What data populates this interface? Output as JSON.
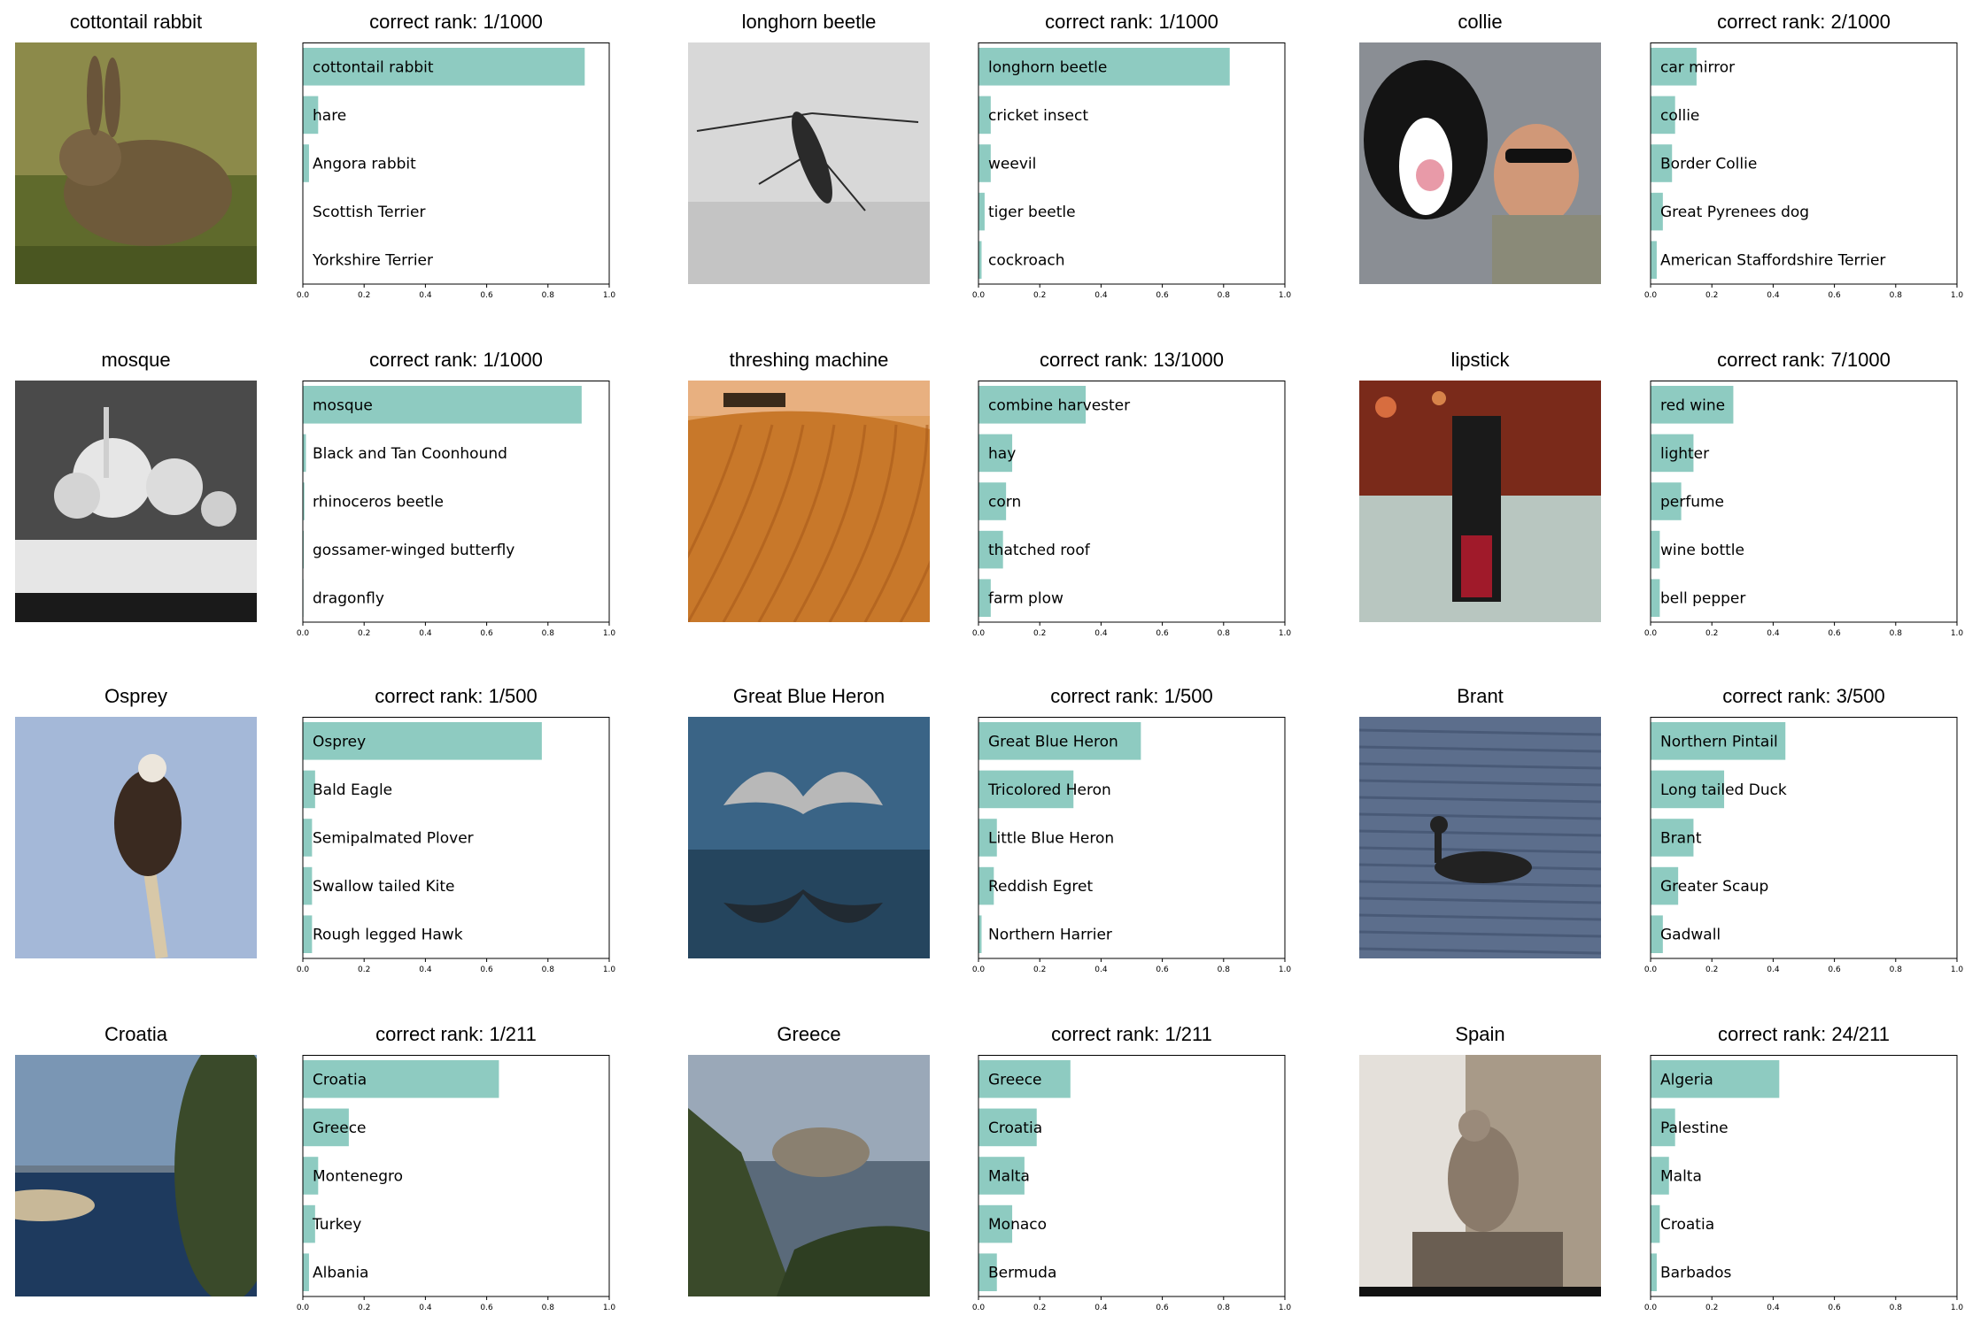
{
  "bar_color": "#8ecbc1",
  "chart_data": [
    {
      "type": "bar",
      "orientation": "horizontal",
      "image_title": "cottontail rabbit",
      "title": "correct rank: 1/1000",
      "categories": [
        "cottontail rabbit",
        "hare",
        "Angora rabbit",
        "Scottish Terrier",
        "Yorkshire Terrier"
      ],
      "values": [
        0.92,
        0.05,
        0.02,
        0.0,
        0.0
      ],
      "xlim": [
        0,
        1
      ],
      "xticks": [
        "0.0",
        "0.2",
        "0.4",
        "0.6",
        "0.8",
        "1.0"
      ],
      "image": {
        "icon": "rabbit-photo",
        "colors": [
          "#5f6a2c",
          "#8c8a4a",
          "#3c4a1a"
        ]
      }
    },
    {
      "type": "bar",
      "orientation": "horizontal",
      "image_title": "longhorn beetle",
      "title": "correct rank: 1/1000",
      "categories": [
        "longhorn beetle",
        "cricket insect",
        "weevil",
        "tiger beetle",
        "cockroach"
      ],
      "values": [
        0.82,
        0.04,
        0.04,
        0.02,
        0.01
      ],
      "xlim": [
        0,
        1
      ],
      "xticks": [
        "0.0",
        "0.2",
        "0.4",
        "0.6",
        "0.8",
        "1.0"
      ],
      "image": {
        "icon": "beetle-photo",
        "colors": [
          "#d8d8d8",
          "#c4c4c4",
          "#2a2a2a"
        ]
      }
    },
    {
      "type": "bar",
      "orientation": "horizontal",
      "image_title": "collie",
      "title": "correct rank: 2/1000",
      "categories": [
        "car mirror",
        "collie",
        "Border Collie",
        "Great Pyrenees dog",
        "American Staffordshire Terrier"
      ],
      "values": [
        0.15,
        0.08,
        0.07,
        0.04,
        0.02
      ],
      "xlim": [
        0,
        1
      ],
      "xticks": [
        "0.0",
        "0.2",
        "0.4",
        "0.6",
        "0.8",
        "1.0"
      ],
      "image": {
        "icon": "dog-and-man-photo",
        "colors": [
          "#8a8e94",
          "#ffffff",
          "#141414"
        ]
      }
    },
    {
      "type": "bar",
      "orientation": "horizontal",
      "image_title": "mosque",
      "title": "correct rank: 1/1000",
      "categories": [
        "mosque",
        "Black and Tan Coonhound",
        "rhinoceros beetle",
        "gossamer-winged butterfly",
        "dragonfly"
      ],
      "values": [
        0.91,
        0.01,
        0.005,
        0.003,
        0.002
      ],
      "xlim": [
        0,
        1
      ],
      "xticks": [
        "0.0",
        "0.2",
        "0.4",
        "0.6",
        "0.8",
        "1.0"
      ],
      "image": {
        "icon": "mosque-photo",
        "colors": [
          "#4a4a4a",
          "#e6e6e6",
          "#1a1a1a"
        ]
      }
    },
    {
      "type": "bar",
      "orientation": "horizontal",
      "image_title": "threshing machine",
      "title": "correct rank: 13/1000",
      "categories": [
        "combine harvester",
        "hay",
        "corn",
        "thatched roof",
        "farm plow"
      ],
      "values": [
        0.35,
        0.11,
        0.09,
        0.08,
        0.04
      ],
      "xlim": [
        0,
        1
      ],
      "xticks": [
        "0.0",
        "0.2",
        "0.4",
        "0.6",
        "0.8",
        "1.0"
      ],
      "image": {
        "icon": "field-photo",
        "colors": [
          "#e0a060",
          "#c8782a",
          "#a85a1a"
        ]
      }
    },
    {
      "type": "bar",
      "orientation": "horizontal",
      "image_title": "lipstick",
      "title": "correct rank: 7/1000",
      "categories": [
        "red wine",
        "lighter",
        "perfume",
        "wine bottle",
        "bell pepper"
      ],
      "values": [
        0.27,
        0.14,
        0.1,
        0.03,
        0.03
      ],
      "xlim": [
        0,
        1
      ],
      "xticks": [
        "0.0",
        "0.2",
        "0.4",
        "0.6",
        "0.8",
        "1.0"
      ],
      "image": {
        "icon": "lipstick-photo",
        "colors": [
          "#7a2a1a",
          "#b8c6c0",
          "#1a1a1a"
        ]
      }
    },
    {
      "type": "bar",
      "orientation": "horizontal",
      "image_title": "Osprey",
      "title": "correct rank: 1/500",
      "categories": [
        "Osprey",
        "Bald Eagle",
        "Semipalmated Plover",
        "Swallow tailed Kite",
        "Rough legged Hawk"
      ],
      "values": [
        0.78,
        0.04,
        0.03,
        0.03,
        0.03
      ],
      "xlim": [
        0,
        1
      ],
      "xticks": [
        "0.0",
        "0.2",
        "0.4",
        "0.6",
        "0.8",
        "1.0"
      ],
      "image": {
        "icon": "osprey-photo",
        "colors": [
          "#a4b8d8",
          "#3a2a20",
          "#d8c8a8"
        ]
      }
    },
    {
      "type": "bar",
      "orientation": "horizontal",
      "image_title": "Great Blue Heron",
      "title": "correct rank: 1/500",
      "categories": [
        "Great Blue Heron",
        "Tricolored Heron",
        "Little Blue Heron",
        "Reddish Egret",
        "Northern Harrier"
      ],
      "values": [
        0.53,
        0.31,
        0.06,
        0.05,
        0.01
      ],
      "xlim": [
        0,
        1
      ],
      "xticks": [
        "0.0",
        "0.2",
        "0.4",
        "0.6",
        "0.8",
        "1.0"
      ],
      "image": {
        "icon": "heron-photo",
        "colors": [
          "#3a6486",
          "#25455e",
          "#b8b8b8"
        ]
      }
    },
    {
      "type": "bar",
      "orientation": "horizontal",
      "image_title": "Brant",
      "title": "correct rank: 3/500",
      "categories": [
        "Northern Pintail",
        "Long tailed Duck",
        "Brant",
        "Greater Scaup",
        "Gadwall"
      ],
      "values": [
        0.44,
        0.24,
        0.14,
        0.09,
        0.04
      ],
      "xlim": [
        0,
        1
      ],
      "xticks": [
        "0.0",
        "0.2",
        "0.4",
        "0.6",
        "0.8",
        "1.0"
      ],
      "image": {
        "icon": "brant-photo",
        "colors": [
          "#5c6e8c",
          "#3e4e6a",
          "#222222"
        ]
      }
    },
    {
      "type": "bar",
      "orientation": "horizontal",
      "image_title": "Croatia",
      "title": "correct rank: 1/211",
      "categories": [
        "Croatia",
        "Greece",
        "Montenegro",
        "Turkey",
        "Albania"
      ],
      "values": [
        0.64,
        0.15,
        0.05,
        0.04,
        0.02
      ],
      "xlim": [
        0,
        1
      ],
      "xticks": [
        "0.0",
        "0.2",
        "0.4",
        "0.6",
        "0.8",
        "1.0"
      ],
      "image": {
        "icon": "coast-photo",
        "colors": [
          "#7a96b4",
          "#1e3a5e",
          "#3a4a2a"
        ]
      }
    },
    {
      "type": "bar",
      "orientation": "horizontal",
      "image_title": "Greece",
      "title": "correct rank: 1/211",
      "categories": [
        "Greece",
        "Croatia",
        "Malta",
        "Monaco",
        "Bermuda"
      ],
      "values": [
        0.3,
        0.19,
        0.15,
        0.11,
        0.06
      ],
      "xlim": [
        0,
        1
      ],
      "xticks": [
        "0.0",
        "0.2",
        "0.4",
        "0.6",
        "0.8",
        "1.0"
      ],
      "image": {
        "icon": "island-photo",
        "colors": [
          "#9aa8b8",
          "#5a6a7a",
          "#3a4a2a"
        ]
      }
    },
    {
      "type": "bar",
      "orientation": "horizontal",
      "image_title": "Spain",
      "title": "correct rank: 24/211",
      "categories": [
        "Algeria",
        "Palestine",
        "Malta",
        "Croatia",
        "Barbados"
      ],
      "values": [
        0.42,
        0.08,
        0.06,
        0.03,
        0.02
      ],
      "xlim": [
        0,
        1
      ],
      "xticks": [
        "0.0",
        "0.2",
        "0.4",
        "0.6",
        "0.8",
        "1.0"
      ],
      "image": {
        "icon": "statue-photo",
        "colors": [
          "#a89a88",
          "#6a5e52",
          "#e4e0da"
        ]
      }
    }
  ]
}
